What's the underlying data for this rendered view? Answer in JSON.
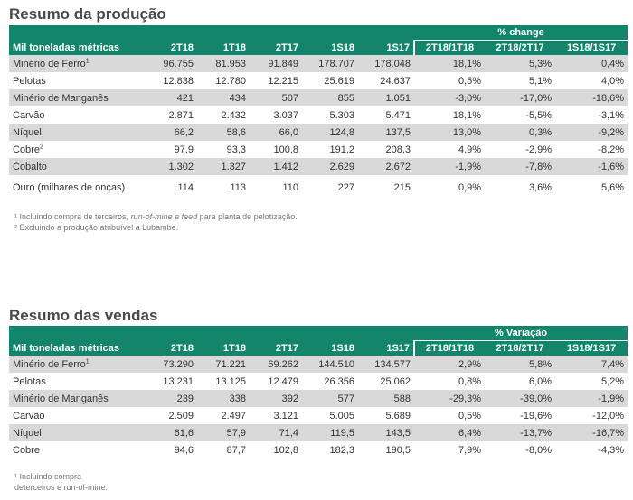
{
  "production": {
    "title": "Resumo da produção",
    "change_label": "% change",
    "headers": [
      "Mil toneladas métricas",
      "2T18",
      "1T18",
      "2T17",
      "1S18",
      "1S17",
      "2T18/1T18",
      "2T18/2T17",
      "1S18/1S17"
    ],
    "rows": [
      {
        "label": "Minério de Ferro",
        "sup": "1",
        "values": [
          "96.755",
          "81.953",
          "91.849",
          "178.707",
          "178.048",
          "18,1%",
          "5,3%",
          "0,4%"
        ]
      },
      {
        "label": "Pelotas",
        "sup": "",
        "values": [
          "12.838",
          "12.780",
          "12.215",
          "25.619",
          "24.637",
          "0,5%",
          "5,1%",
          "4,0%"
        ]
      },
      {
        "label": "Minério de Manganês",
        "sup": "",
        "values": [
          "421",
          "434",
          "507",
          "855",
          "1.051",
          "-3,0%",
          "-17,0%",
          "-18,6%"
        ]
      },
      {
        "label": "Carvão",
        "sup": "",
        "values": [
          "2.871",
          "2.432",
          "3.037",
          "5.303",
          "5.471",
          "18,1%",
          "-5,5%",
          "-3,1%"
        ]
      },
      {
        "label": "Níquel",
        "sup": "",
        "values": [
          "66,2",
          "58,6",
          "66,0",
          "124,8",
          "137,5",
          "13,0%",
          "0,3%",
          "-9,2%"
        ]
      },
      {
        "label": "Cobre",
        "sup": "2",
        "values": [
          "97,9",
          "93,3",
          "100,8",
          "191,2",
          "208,3",
          "4,9%",
          "-2,9%",
          "-8,2%"
        ]
      },
      {
        "label": "Cobalto",
        "sup": "",
        "values": [
          "1.302",
          "1.327",
          "1.412",
          "2.629",
          "2.672",
          "-1,9%",
          "-7,8%",
          "-1,6%"
        ]
      },
      {
        "label": "Ouro (milhares de onças)",
        "sup": "",
        "values": [
          "114",
          "113",
          "110",
          "227",
          "215",
          "0,9%",
          "3,6%",
          "5,6%"
        ]
      }
    ],
    "footnotes": [
      "¹ Incluindo compra de terceiros, run-of-mine e feed para planta de pelotização.",
      "² Excluindo a produção atribuível a Lubambe."
    ]
  },
  "sales": {
    "title": "Resumo das vendas",
    "change_label": "%  Variação",
    "headers": [
      "Mil toneladas métricas",
      "2T18",
      "1T18",
      "2T17",
      "1S18",
      "1S17",
      "2T18/1T18",
      "2T18/2T17",
      "1S18/1S17"
    ],
    "rows": [
      {
        "label": "Minério de Ferro",
        "sup": "1",
        "values": [
          "73.290",
          "71.221",
          "69.262",
          "144.510",
          "134.577",
          "2,9%",
          "5,8%",
          "7,4%"
        ]
      },
      {
        "label": "Pelotas",
        "sup": "",
        "values": [
          "13.231",
          "13.125",
          "12.479",
          "26.356",
          "25.062",
          "0,8%",
          "6,0%",
          "5,2%"
        ]
      },
      {
        "label": "Minério de Manganês",
        "sup": "",
        "values": [
          "239",
          "338",
          "392",
          "577",
          "588",
          "-29,3%",
          "-39,0%",
          "-1,9%"
        ]
      },
      {
        "label": "Carvão",
        "sup": "",
        "values": [
          "2.509",
          "2.497",
          "3.121",
          "5.005",
          "5.689",
          "0,5%",
          "-19,6%",
          "-12,0%"
        ]
      },
      {
        "label": "Níquel",
        "sup": "",
        "values": [
          "61,6",
          "57,9",
          "71,4",
          "119,5",
          "143,5",
          "6,4%",
          "-13,7%",
          "-16,7%"
        ]
      },
      {
        "label": "Cobre",
        "sup": "",
        "values": [
          "94,6",
          "87,7",
          "102,8",
          "182,3",
          "190,5",
          "7,9%",
          "-8,0%",
          "-4,3%"
        ]
      }
    ],
    "footnotes": [
      "¹ Incluindo compra",
      "deterceiros e run-of-mine."
    ]
  },
  "colors": {
    "header_green": "#12856a",
    "stripe_gray": "#d9d9d9"
  }
}
